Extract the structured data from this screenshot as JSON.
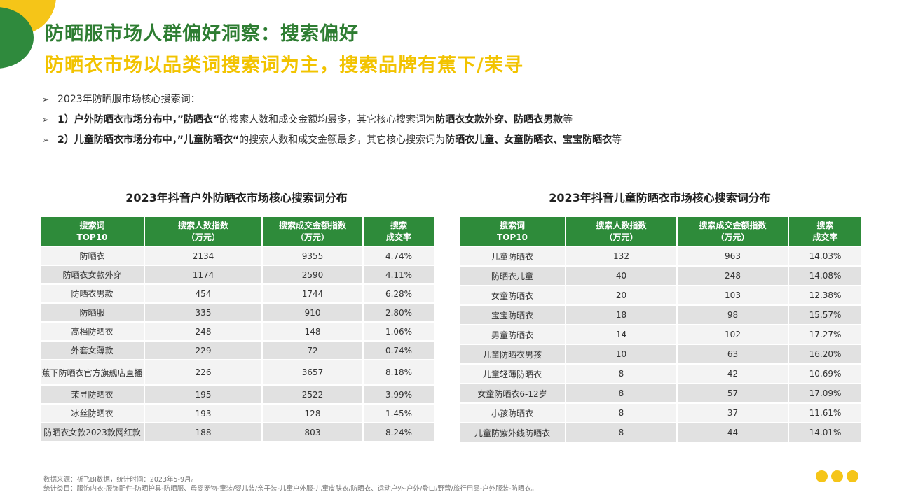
{
  "header": {
    "title": "防晒服市场人群偏好洞察：搜索偏好",
    "subtitle": "防晒衣市场以品类词搜索词为主，搜索品牌有蕉下/茉寻"
  },
  "bullets": [
    {
      "plain_1": "2023年防晒服市场核心搜索词："
    },
    {
      "bold_1": "1）户外防晒衣市场分布中，”防晒衣“",
      "plain_1": "的搜索人数和成交金额均最多，其它核心搜索词为",
      "bold_2": "防晒衣女款外穿、防晒衣男款",
      "plain_2": "等"
    },
    {
      "bold_1": "2）儿童防晒衣市场分布中，”儿童防晒衣“",
      "plain_1": "的搜索人数和成交金额最多，其它核心搜索词为",
      "bold_2": "防晒衣儿童、女童防晒衣、宝宝防晒衣",
      "plain_2": "等"
    }
  ],
  "bullet_icon": "right-arrowhead-icon",
  "tables": [
    {
      "title": "2023年抖音户外防晒衣市场核心搜索词分布",
      "headers": [
        {
          "line1": "搜索词",
          "line2": "TOP10"
        },
        {
          "line1": "搜索人数指数",
          "line2": "（万元）"
        },
        {
          "line1": "搜索成交金额指数",
          "line2": "（万元）"
        },
        {
          "line1": "搜索",
          "line2": "成交率"
        }
      ],
      "rows": [
        [
          "防晒衣",
          "2134",
          "9355",
          "4.74%"
        ],
        [
          "防晒衣女款外穿",
          "1174",
          "2590",
          "4.11%"
        ],
        [
          "防晒衣男款",
          "454",
          "1744",
          "6.28%"
        ],
        [
          "防晒服",
          "335",
          "910",
          "2.80%"
        ],
        [
          "高档防晒衣",
          "248",
          "148",
          "1.06%"
        ],
        [
          "外套女薄款",
          "229",
          "72",
          "0.74%"
        ],
        [
          "蕉下防晒衣官方旗舰店直播",
          "226",
          "3657",
          "8.18%"
        ],
        [
          "茉寻防晒衣",
          "195",
          "2522",
          "3.99%"
        ],
        [
          "冰丝防晒衣",
          "193",
          "128",
          "1.45%"
        ],
        [
          "防晒衣女款2023款网红款",
          "188",
          "803",
          "8.24%"
        ]
      ]
    },
    {
      "title": "2023年抖音儿童防晒衣市场核心搜索词分布",
      "headers": [
        {
          "line1": "搜索词",
          "line2": "TOP10"
        },
        {
          "line1": "搜索人数指数",
          "line2": "（万元）"
        },
        {
          "line1": "搜索成交金额指数",
          "line2": "（万元）"
        },
        {
          "line1": "搜索",
          "line2": "成交率"
        }
      ],
      "rows": [
        [
          "儿童防晒衣",
          "132",
          "963",
          "14.03%"
        ],
        [
          "防晒衣儿童",
          "40",
          "248",
          "14.08%"
        ],
        [
          "女童防晒衣",
          "20",
          "103",
          "12.38%"
        ],
        [
          "宝宝防晒衣",
          "18",
          "98",
          "15.57%"
        ],
        [
          "男童防晒衣",
          "14",
          "102",
          "17.27%"
        ],
        [
          "儿童防晒衣男孩",
          "10",
          "63",
          "16.20%"
        ],
        [
          "儿童轻薄防晒衣",
          "8",
          "42",
          "10.69%"
        ],
        [
          "女童防晒衣6-12岁",
          "8",
          "57",
          "17.09%"
        ],
        [
          "小孩防晒衣",
          "8",
          "37",
          "11.61%"
        ],
        [
          "儿童防紫外线防晒衣",
          "8",
          "44",
          "14.01%"
        ]
      ]
    }
  ],
  "footnotes": {
    "source": "数据来源：祈飞BI数据，统计时间：2023年5-9月。",
    "categories": "统计类目：服饰内衣-服饰配件-防晒护具-防晒服、母婴宠物-童装/婴儿装/亲子装-儿童户外服-儿童皮肤衣/防晒衣、运动户外-户外/登山/野营/旅行用品-户外服装-防晒衣。"
  },
  "colors": {
    "green": "#2e8b3a",
    "title_green": "#2e7d32",
    "yellow": "#f2c300",
    "row_light": "#f3f3f3",
    "row_dark": "#e1e1e1"
  }
}
